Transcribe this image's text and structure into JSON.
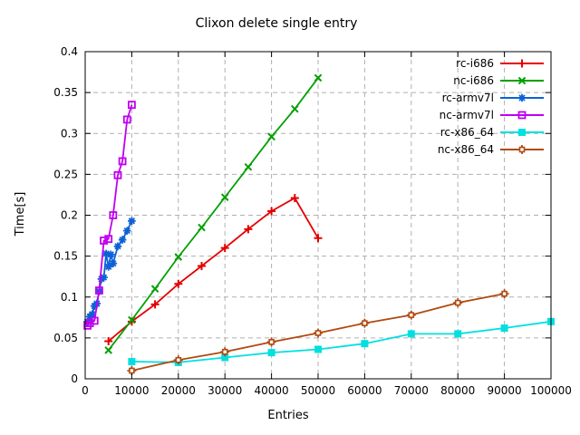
{
  "chart_data": {
    "type": "line",
    "title": "Clixon delete single entry",
    "xlabel": "Entries",
    "ylabel": "Time[s]",
    "xlim": [
      0,
      100000
    ],
    "ylim": [
      0,
      0.4
    ],
    "grid": true,
    "grid_color": "#b0b0b0",
    "frame_color": "#000000",
    "legend_position": "top-right-inside",
    "xticks": {
      "values": [
        0,
        10000,
        20000,
        30000,
        40000,
        50000,
        60000,
        70000,
        80000,
        90000,
        100000
      ],
      "labels": [
        "0",
        "10000",
        "20000",
        "30000",
        "40000",
        "50000",
        "60000",
        "70000",
        "80000",
        "90000",
        "100000"
      ]
    },
    "yticks": {
      "values": [
        0,
        0.05,
        0.1,
        0.15,
        0.2,
        0.25,
        0.3,
        0.35,
        0.4
      ],
      "labels": [
        "0",
        "0.05",
        "0.1",
        "0.15",
        "0.2",
        "0.25",
        "0.3",
        "0.35",
        "0.4"
      ]
    },
    "series": [
      {
        "name": "rc-i686",
        "color": "#e50000",
        "marker": "plus",
        "x": [
          5000,
          10000,
          15000,
          20000,
          25000,
          30000,
          35000,
          40000,
          45000,
          50000
        ],
        "y": [
          0.046,
          0.07,
          0.091,
          0.116,
          0.138,
          0.16,
          0.183,
          0.205,
          0.221,
          0.172
        ]
      },
      {
        "name": "nc-i686",
        "color": "#00a000",
        "marker": "cross",
        "x": [
          5000,
          10000,
          15000,
          20000,
          25000,
          30000,
          35000,
          40000,
          45000,
          50000
        ],
        "y": [
          0.035,
          0.072,
          0.11,
          0.149,
          0.185,
          0.222,
          0.259,
          0.296,
          0.33,
          0.368
        ]
      },
      {
        "name": "rc-armv7l",
        "color": "#0c61d8",
        "marker": "asterisk",
        "x": [
          500,
          1000,
          1500,
          2000,
          2500,
          3000,
          3500,
          4000,
          4500,
          5000,
          5500,
          6000,
          7000,
          8000,
          9000,
          10000
        ],
        "y": [
          0.07,
          0.076,
          0.079,
          0.089,
          0.092,
          0.107,
          0.122,
          0.124,
          0.153,
          0.137,
          0.152,
          0.141,
          0.162,
          0.17,
          0.181,
          0.193
        ]
      },
      {
        "name": "nc-armv7l",
        "color": "#c000f0",
        "marker": "open-square",
        "x": [
          500,
          1000,
          2000,
          3000,
          4000,
          5000,
          6000,
          7000,
          8000,
          9000,
          10000
        ],
        "y": [
          0.065,
          0.068,
          0.071,
          0.108,
          0.169,
          0.171,
          0.2,
          0.249,
          0.266,
          0.317,
          0.335
        ]
      },
      {
        "name": "rc-x86_64",
        "color": "#00e0e0",
        "marker": "filled-square",
        "x": [
          10000,
          20000,
          30000,
          40000,
          50000,
          60000,
          70000,
          80000,
          90000,
          100000
        ],
        "y": [
          0.021,
          0.02,
          0.026,
          0.032,
          0.036,
          0.043,
          0.055,
          0.055,
          0.062,
          0.07
        ]
      },
      {
        "name": "nc-x86_64",
        "color": "#b04a10",
        "marker": "boxed-plus",
        "x": [
          10000,
          20000,
          30000,
          40000,
          50000,
          60000,
          70000,
          80000,
          90000
        ],
        "y": [
          0.01,
          0.023,
          0.033,
          0.045,
          0.056,
          0.068,
          0.078,
          0.093,
          0.104
        ]
      }
    ]
  }
}
